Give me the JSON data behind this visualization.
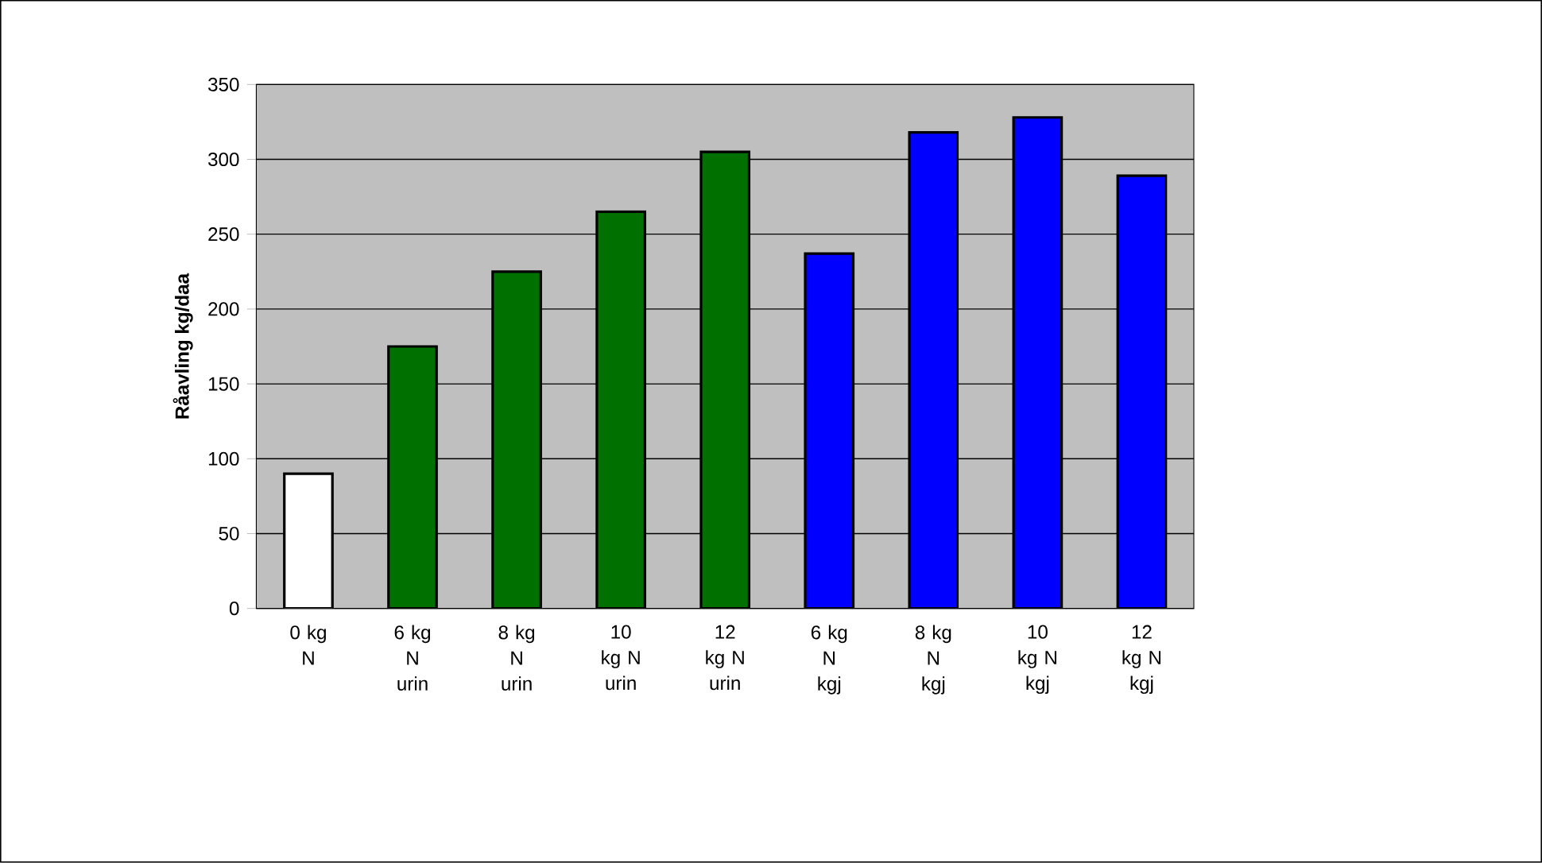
{
  "chart_data": {
    "type": "bar",
    "ylabel": "**Råavling kg/daa**",
    "categories": [
      "0 kg N",
      "6 kg N urin",
      "8 kg N urin",
      "10 kg N urin",
      "12 kg N urin",
      "6 kg N kgj",
      "8 kg N kgj",
      "10 kg N kgj",
      "12 kg N kgj"
    ],
    "values": [
      90,
      175,
      225,
      265,
      305,
      237,
      318,
      328,
      289
    ],
    "colors": [
      "#ffffff",
      "#007000",
      "#007000",
      "#007000",
      "#007000",
      "#0000ff",
      "#0000ff",
      "#0000ff",
      "#0000ff"
    ],
    "ylim": [
      0,
      350
    ],
    "yticks": [
      0,
      50,
      100,
      150,
      200,
      250,
      300,
      350
    ],
    "grid": "y"
  }
}
